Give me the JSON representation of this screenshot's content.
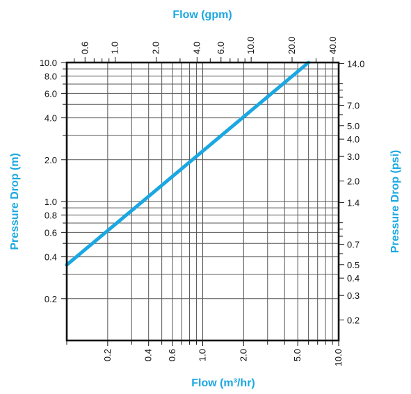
{
  "chart_data": {
    "type": "line",
    "xlabel_bottom": "Flow (m³/hr)",
    "xlabel_top": "Flow (gpm)",
    "ylabel_left": "Pressure Drop (m)",
    "ylabel_right": "Pressure Drop (psi)",
    "x_scale": "log",
    "y_scale": "log",
    "xlim": [
      0.1,
      10.0
    ],
    "ylim": [
      0.1,
      10.0
    ],
    "grid": true,
    "colors": {
      "line": "#1ba7e1",
      "title": "#1ba7e1",
      "frame": "#111111",
      "grid": "#555555"
    },
    "bottom_ticks": [
      {
        "value": 0.2,
        "label": "0.2"
      },
      {
        "value": 0.4,
        "label": "0.4"
      },
      {
        "value": 0.6,
        "label": "0.6"
      },
      {
        "value": 1.0,
        "label": "1.0"
      },
      {
        "value": 2.0,
        "label": "2.0"
      },
      {
        "value": 5.0,
        "label": "5.0"
      },
      {
        "value": 10.0,
        "label": "10.0"
      }
    ],
    "top_ticks": [
      {
        "value": 0.6,
        "label": "0.6"
      },
      {
        "value": 1.0,
        "label": "1.0"
      },
      {
        "value": 2.0,
        "label": "2.0"
      },
      {
        "value": 4.0,
        "label": "4.0"
      },
      {
        "value": 6.0,
        "label": "6.0"
      },
      {
        "value": 10.0,
        "label": "10.0"
      },
      {
        "value": 20.0,
        "label": "20.0"
      },
      {
        "value": 40.0,
        "label": "40.0"
      }
    ],
    "left_ticks": [
      {
        "value": 10.0,
        "label": "10.0"
      },
      {
        "value": 8.0,
        "label": "8.0"
      },
      {
        "value": 6.0,
        "label": "6.0"
      },
      {
        "value": 4.0,
        "label": "4.0"
      },
      {
        "value": 2.0,
        "label": "2.0"
      },
      {
        "value": 1.0,
        "label": "1.0"
      },
      {
        "value": 0.8,
        "label": "0.8"
      },
      {
        "value": 0.6,
        "label": "0.6"
      },
      {
        "value": 0.4,
        "label": "0.4"
      },
      {
        "value": 0.2,
        "label": "0.2"
      }
    ],
    "right_ticks": [
      {
        "value": 14.0,
        "label": "14.0"
      },
      {
        "value": 7.0,
        "label": "7.0"
      },
      {
        "value": 5.0,
        "label": "5.0"
      },
      {
        "value": 4.0,
        "label": "4.0"
      },
      {
        "value": 3.0,
        "label": "3.0"
      },
      {
        "value": 2.0,
        "label": "2.0"
      },
      {
        "value": 1.4,
        "label": "1.4"
      },
      {
        "value": 0.7,
        "label": "0.7"
      },
      {
        "value": 0.5,
        "label": "0.5"
      },
      {
        "value": 0.4,
        "label": "0.4"
      },
      {
        "value": 0.3,
        "label": "0.3"
      },
      {
        "value": 0.2,
        "label": "0.2"
      }
    ],
    "series": [
      {
        "x": [
          0.1,
          6.0
        ],
        "y": [
          0.35,
          10.0
        ]
      }
    ]
  }
}
